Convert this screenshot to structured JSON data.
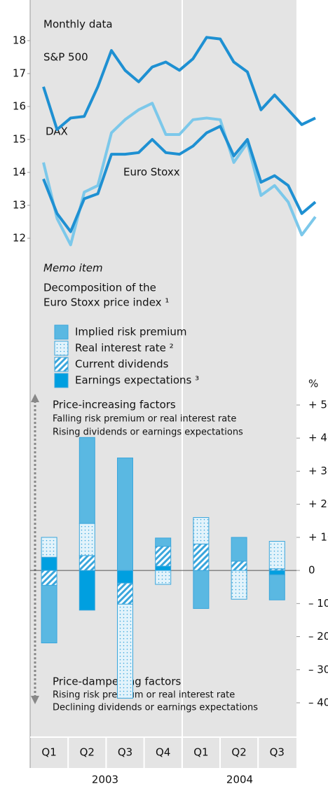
{
  "chart_data": [
    {
      "type": "line",
      "note": "Monthly data",
      "categories": [
        null,
        null,
        null,
        null,
        null,
        null,
        null,
        null,
        null,
        null,
        null,
        null,
        null,
        null,
        null,
        null,
        null,
        null,
        null,
        null,
        null
      ],
      "series": [
        {
          "name": "S&P 500",
          "color": "#1e90d2",
          "values": [
            16.6,
            15.3,
            15.65,
            15.7,
            16.6,
            17.7,
            17.1,
            16.75,
            17.2,
            17.35,
            17.1,
            17.45,
            18.1,
            18.05,
            17.35,
            17.05,
            15.9,
            16.35,
            15.9,
            15.45,
            15.65
          ]
        },
        {
          "name": "DAX",
          "color": "#7cc8ea",
          "values": [
            14.3,
            12.6,
            11.8,
            13.4,
            13.6,
            15.2,
            15.6,
            15.9,
            16.1,
            15.15,
            15.15,
            15.6,
            15.65,
            15.6,
            14.3,
            14.9,
            13.3,
            13.6,
            13.1,
            12.1,
            12.65
          ]
        },
        {
          "name": "Euro Stoxx",
          "color": "#1e90d2",
          "values": [
            13.8,
            12.75,
            12.2,
            13.2,
            13.35,
            14.55,
            14.55,
            14.6,
            15.0,
            14.6,
            14.55,
            14.8,
            15.2,
            15.4,
            14.5,
            15.0,
            13.7,
            13.9,
            13.6,
            12.75,
            13.1
          ]
        }
      ],
      "ylim": [
        11.8,
        19.2
      ],
      "yticks": [
        12,
        13,
        14,
        15,
        16,
        17,
        18
      ]
    },
    {
      "type": "bar",
      "note": "Memo item",
      "title_lines": [
        "Decomposition of the",
        "Euro Stoxx price index ¹"
      ],
      "unit": "%",
      "up_label": "Price-increasing factors",
      "up_lines": [
        "Falling risk premium or real interest rate",
        "Rising dividends or earnings expectations"
      ],
      "down_label": "Price-dampening factors",
      "down_lines": [
        "Rising risk premium or real interest rate",
        "Declining dividends or earnings expectations"
      ],
      "categories": [
        "Q1",
        "Q2",
        "Q3",
        "Q4",
        "Q1",
        "Q2",
        "Q3"
      ],
      "years": [
        "2003",
        "2004"
      ],
      "series": [
        {
          "name": "Implied risk premium",
          "color": "#5ab8e2",
          "pattern": "solid",
          "values": [
            -17.4,
            26,
            34,
            2.5,
            -11.5,
            7.2,
            -7.6
          ]
        },
        {
          "name": "Real interest rate ²",
          "color": "#5ab8e2",
          "pattern": "dots",
          "values": [
            6,
            9.7,
            -28.4,
            -4.2,
            8,
            -8.7,
            8.3
          ]
        },
        {
          "name": "Current dividends",
          "color": "#5ab8e2",
          "pattern": "hatch",
          "values": [
            -4.5,
            4.5,
            -6.4,
            6,
            8,
            2.8,
            0.5
          ]
        },
        {
          "name": "Earnings expectations ³",
          "color": "#009fe0",
          "pattern": "solid",
          "values": [
            4,
            -12,
            -3.8,
            1.3,
            0,
            0,
            -1.3
          ]
        }
      ],
      "ylim": [
        -40,
        50
      ],
      "yticks": [
        {
          "value": 50,
          "label": "+ 50"
        },
        {
          "value": 40,
          "label": "+ 40"
        },
        {
          "value": 30,
          "label": "+ 30"
        },
        {
          "value": 20,
          "label": "+ 20"
        },
        {
          "value": 10,
          "label": "+ 10"
        },
        0,
        {
          "value": -10,
          "label": "– 10"
        },
        {
          "value": -20,
          "label": "– 20"
        },
        {
          "value": -30,
          "label": "– 30"
        },
        {
          "value": -40,
          "label": "– 40"
        }
      ]
    }
  ]
}
